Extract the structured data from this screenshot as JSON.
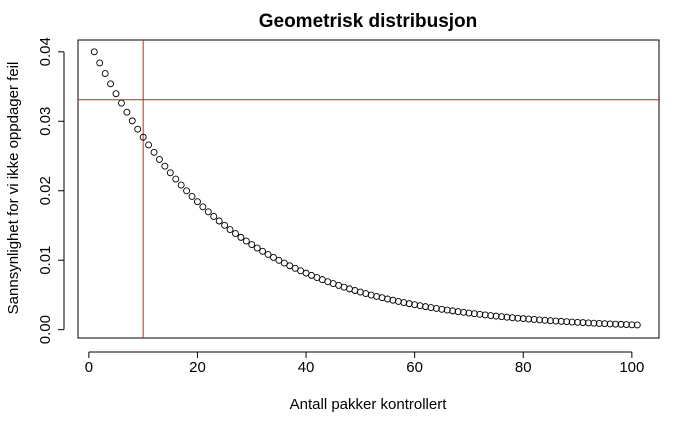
{
  "chart_data": {
    "type": "scatter",
    "title": "Geometrisk distribusjon",
    "xlabel": "Antall pakker kontrollert",
    "ylabel": "Sannsynlighet for vi ikke oppdager feil",
    "xlim": [
      -2,
      105
    ],
    "ylim": [
      -0.0012,
      0.0417
    ],
    "xticks": [
      0,
      20,
      40,
      60,
      80,
      100
    ],
    "xtick_labels": [
      "0",
      "20",
      "40",
      "60",
      "80",
      "100"
    ],
    "yticks": [
      0.0,
      0.01,
      0.02,
      0.03,
      0.04
    ],
    "ytick_labels": [
      "0.00",
      "0.01",
      "0.02",
      "0.03",
      "0.04"
    ],
    "grid": false,
    "marker": "open-circle",
    "series": [
      {
        "distribution": "geometric",
        "p": 0.04,
        "x_range": [
          1,
          101
        ],
        "formula": "y = 0.04 * (1 - 0.04)^(x - 1)"
      }
    ],
    "reference_lines": [
      {
        "orientation": "vertical",
        "x": 10,
        "color": "#cc2222"
      },
      {
        "orientation": "horizontal",
        "y": 0.0331,
        "color": "#cc2222"
      }
    ]
  }
}
